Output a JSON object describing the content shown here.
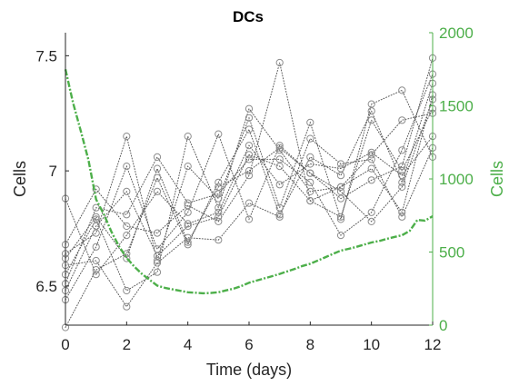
{
  "chart_data": {
    "type": "line",
    "title": "DCs",
    "xlabel": "Time (days)",
    "ylabel_left": "Cells",
    "ylabel_right": "Cells",
    "xlim": [
      0,
      12
    ],
    "ylim_left": [
      6.33,
      7.6
    ],
    "ylim_right": [
      0,
      2000
    ],
    "x_ticks": [
      "0",
      "2",
      "4",
      "6",
      "8",
      "10",
      "12"
    ],
    "left_ticks": [
      "6.5",
      "7",
      "7.5"
    ],
    "right_ticks": [
      "0",
      "500",
      "1000",
      "1500",
      "2000"
    ],
    "grid": false,
    "box": false,
    "colors": {
      "samples": "#8c8c8c",
      "model": "#4daf4a",
      "axis_left": "#262626",
      "axis_right": "#4daf4a"
    },
    "x": [
      0,
      1,
      2,
      3,
      4,
      5,
      6,
      7,
      8,
      9,
      10,
      11,
      12
    ],
    "series": [
      {
        "line_style": "dotted",
        "marker": "circle",
        "values": [
          6.68,
          6.92,
          6.76,
          6.73,
          6.85,
          6.78,
          6.98,
          7.47,
          6.87,
          6.93,
          7.07,
          7.22,
          7.25
        ]
      },
      {
        "line_style": "dotted",
        "marker": "circle",
        "values": [
          6.64,
          6.73,
          7.15,
          6.61,
          7.02,
          6.88,
          7.23,
          6.84,
          7.21,
          6.79,
          7.29,
          7.35,
          7.06
        ]
      },
      {
        "line_style": "dotted",
        "marker": "circle",
        "values": [
          6.55,
          6.79,
          6.48,
          6.56,
          7.15,
          6.84,
          7.27,
          7.09,
          6.91,
          6.93,
          7.01,
          6.82,
          7.33
        ]
      },
      {
        "line_style": "dotted",
        "marker": "circle",
        "values": [
          6.32,
          6.57,
          6.64,
          6.97,
          6.68,
          6.95,
          7.18,
          6.81,
          7.06,
          6.98,
          7.26,
          6.95,
          7.38
        ]
      },
      {
        "line_style": "dotted",
        "marker": "circle",
        "values": [
          6.44,
          6.67,
          7.02,
          6.66,
          6.82,
          7.16,
          6.79,
          7.11,
          6.99,
          6.88,
          6.96,
          7.02,
          7.49
        ]
      },
      {
        "line_style": "dotted",
        "marker": "circle",
        "values": [
          6.88,
          6.55,
          6.72,
          6.91,
          6.77,
          6.82,
          7.11,
          6.94,
          7.03,
          7.01,
          7.08,
          6.98,
          7.15
        ]
      },
      {
        "line_style": "dotted",
        "marker": "circle",
        "values": [
          6.51,
          6.84,
          6.81,
          7.06,
          6.86,
          6.9,
          7.05,
          7.05,
          6.95,
          6.72,
          6.82,
          7.09,
          7.42
        ]
      },
      {
        "line_style": "dotted",
        "marker": "circle",
        "values": [
          6.59,
          6.61,
          6.41,
          6.6,
          6.71,
          6.7,
          6.86,
          6.8,
          7.14,
          7.03,
          7.05,
          6.8,
          7.1
        ]
      },
      {
        "line_style": "dotted",
        "marker": "circle",
        "values": [
          6.62,
          6.8,
          6.62,
          7.01,
          6.69,
          6.93,
          7.0,
          7.1,
          6.99,
          6.91,
          6.78,
          6.93,
          7.31
        ]
      },
      {
        "line_style": "dotted",
        "marker": "circle",
        "values": [
          6.48,
          6.76,
          6.91,
          6.63,
          6.76,
          6.8,
          7.07,
          7.02,
          6.87,
          6.8,
          7.22,
          7.0,
          7.27
        ]
      }
    ],
    "model_curve": {
      "axis": "right",
      "line_style": "dash-dot",
      "x": [
        0,
        0.25,
        0.5,
        0.75,
        1,
        1.25,
        1.5,
        1.75,
        2,
        2.25,
        2.5,
        2.75,
        3,
        3.25,
        3.5,
        3.75,
        4,
        4.25,
        4.5,
        4.75,
        5,
        5.25,
        5.5,
        5.75,
        6,
        6.25,
        6.5,
        6.75,
        7,
        7.25,
        7.5,
        7.75,
        8,
        8.25,
        8.5,
        8.75,
        9,
        9.25,
        9.5,
        9.75,
        10,
        10.25,
        10.5,
        10.75,
        11,
        11.25,
        11.5,
        11.75,
        12
      ],
      "values": [
        1750,
        1520,
        1330,
        1130,
        860,
        760,
        640,
        540,
        460,
        400,
        350,
        310,
        270,
        255,
        245,
        235,
        225,
        222,
        218,
        220,
        225,
        238,
        250,
        268,
        290,
        305,
        320,
        335,
        350,
        368,
        385,
        405,
        420,
        442,
        465,
        488,
        510,
        522,
        535,
        550,
        565,
        575,
        590,
        603,
        615,
        645,
        720,
        715,
        745
      ]
    }
  }
}
